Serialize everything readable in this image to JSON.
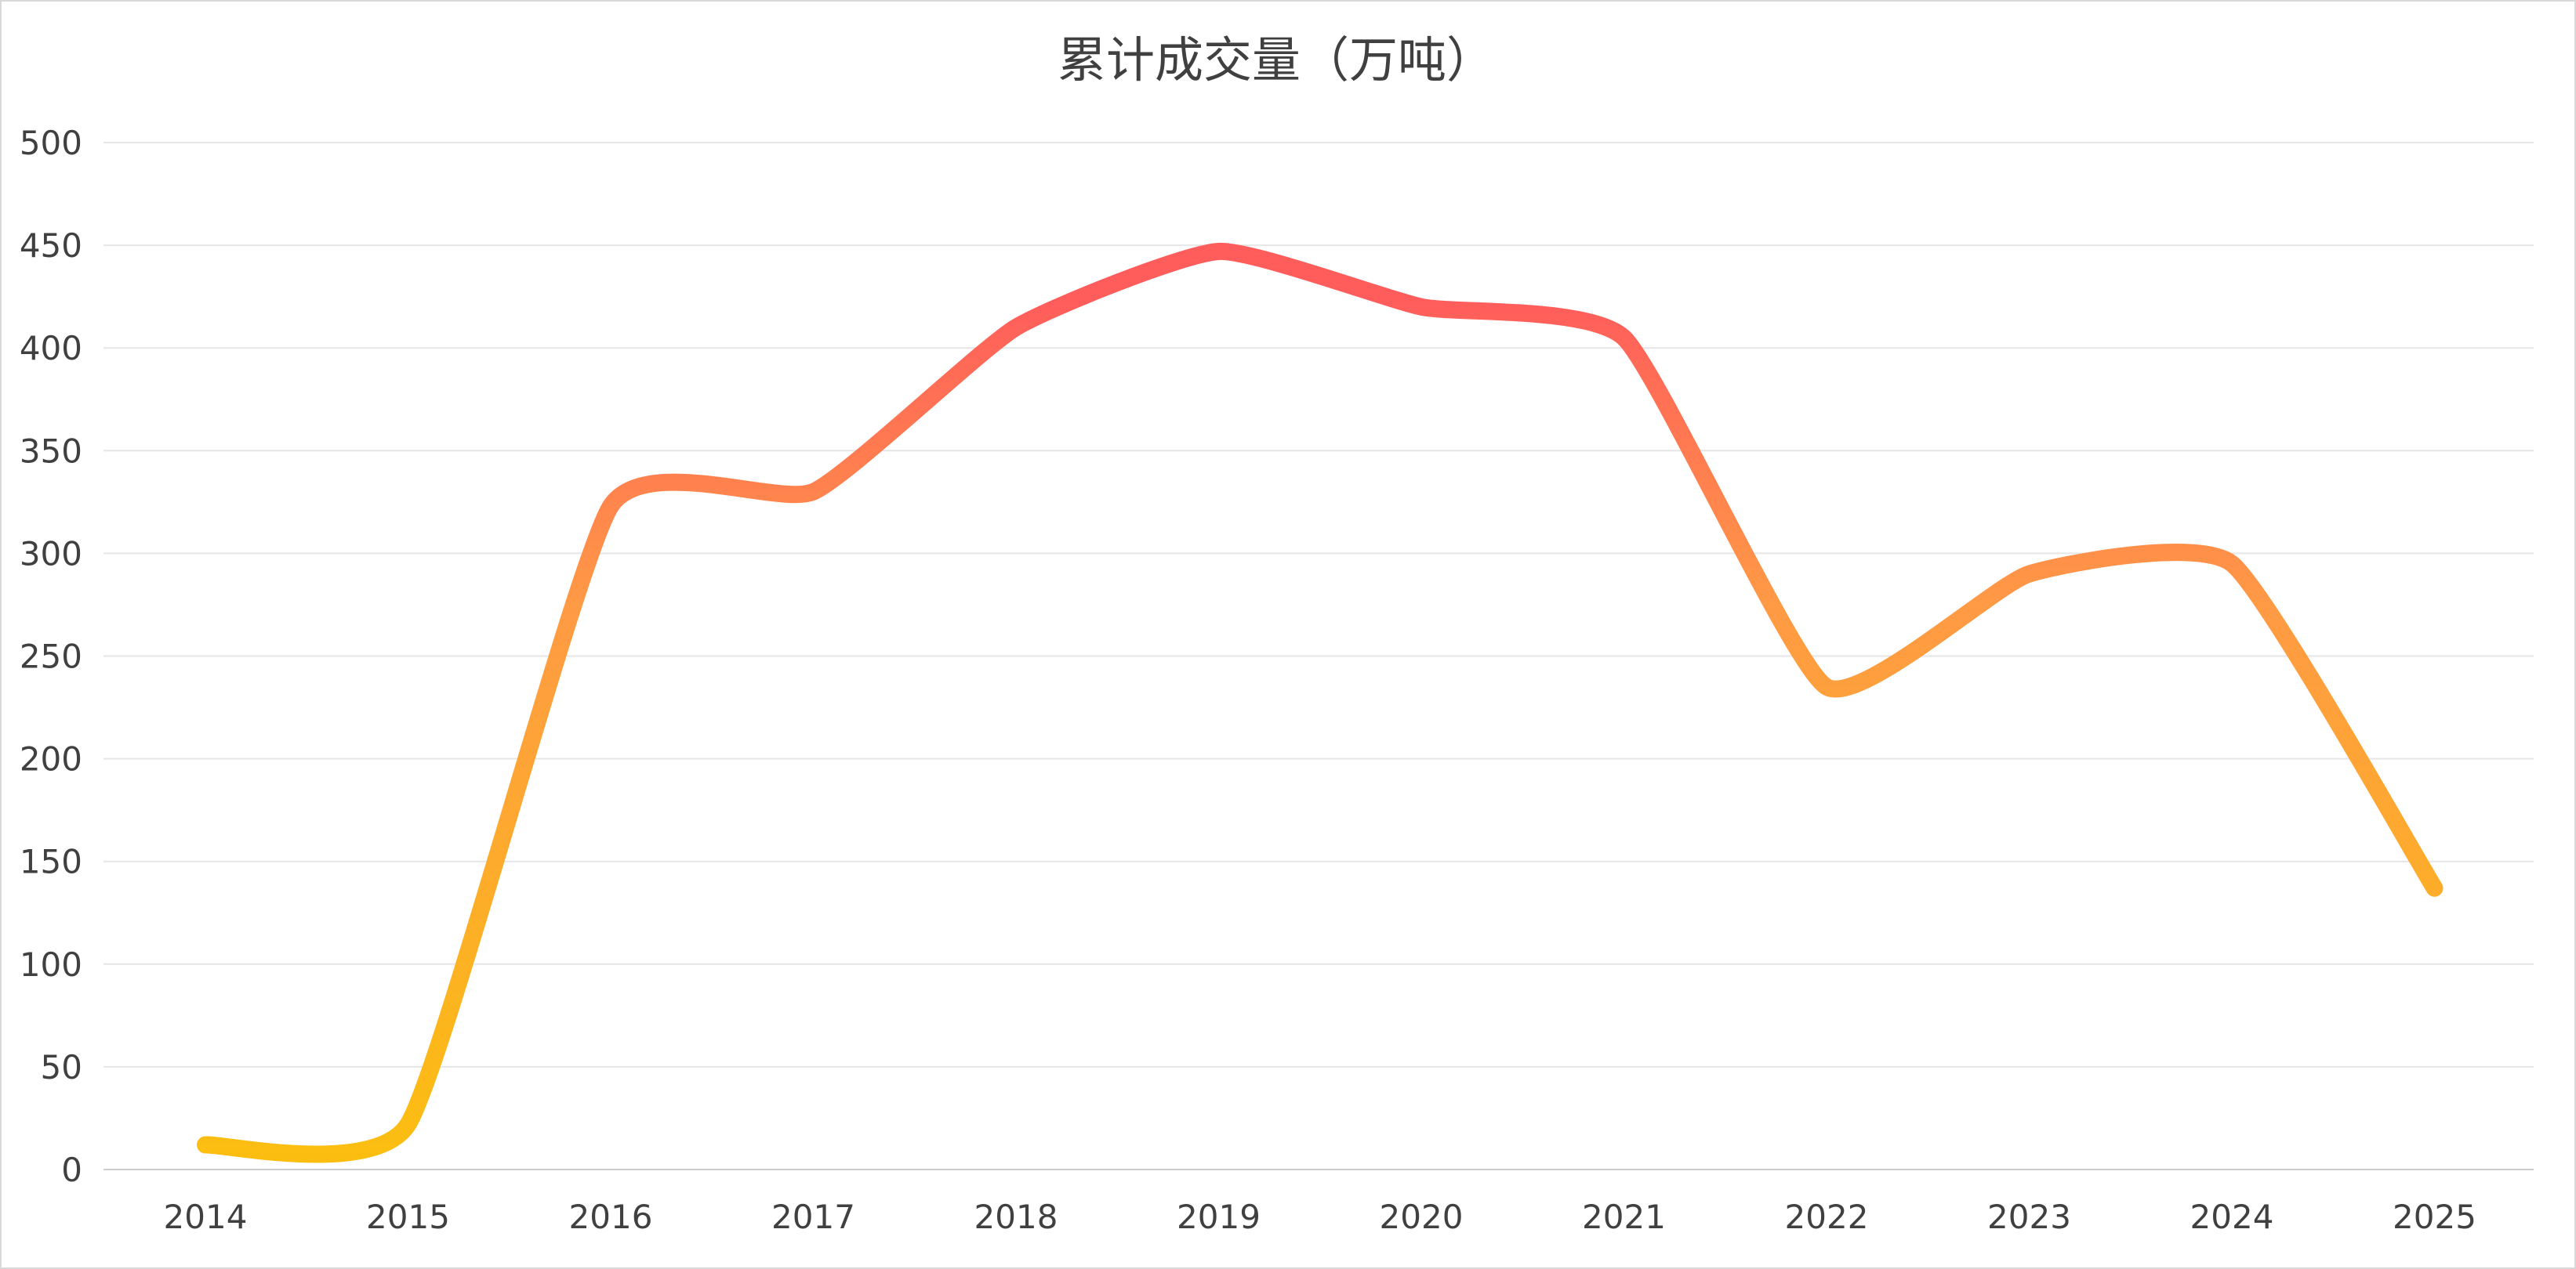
{
  "chart_data": {
    "type": "line",
    "title": "累计成交量（万吨）",
    "xlabel": "",
    "ylabel": "",
    "x": [
      "2014",
      "2015",
      "2016",
      "2017",
      "2018",
      "2019",
      "2020",
      "2021",
      "2022",
      "2023",
      "2024",
      "2025"
    ],
    "series": [
      {
        "values": [
          12,
          22,
          323,
          330,
          410,
          447,
          420,
          405,
          235,
          290,
          295,
          137
        ]
      }
    ],
    "yticks": [
      "0",
      "50",
      "100",
      "150",
      "200",
      "250",
      "300",
      "350",
      "400",
      "450",
      "500"
    ],
    "ylim": [
      0,
      500
    ],
    "smooth": true,
    "grid": true,
    "legend": "none",
    "colors": {
      "line_low": "#fbbf0f",
      "line_mid": "#ff9a45",
      "line_high": "#ff5c5c",
      "grid": "#e6e6e6",
      "axis": "#cccccc",
      "text": "#404040"
    }
  }
}
